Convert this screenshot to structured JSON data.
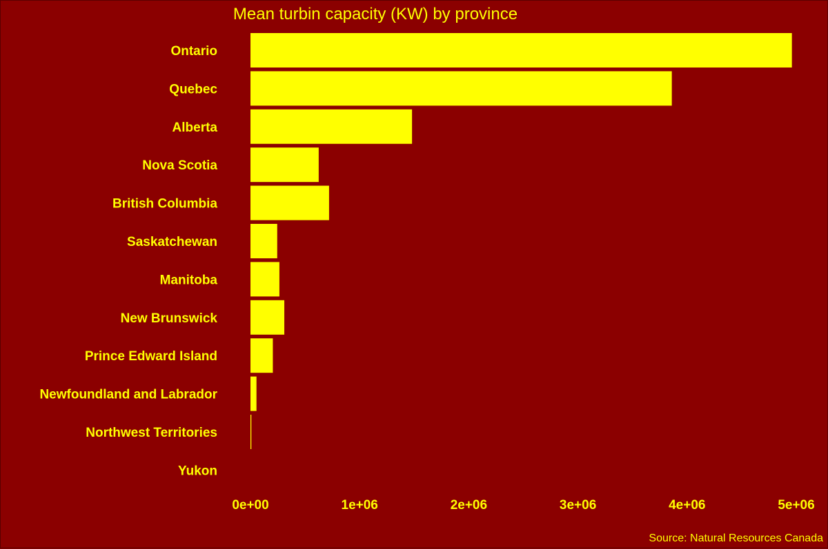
{
  "colors": {
    "background": "#8b0000",
    "bar": "#ffff00",
    "text": "#ffff00"
  },
  "chart_data": {
    "type": "bar",
    "orientation": "horizontal",
    "title": "Mean turbin capacity (KW) by province",
    "caption": "Source: Natural Resources Canada",
    "xlabel": "",
    "ylabel": "",
    "categories": [
      "Ontario",
      "Quebec",
      "Alberta",
      "Nova Scotia",
      "British Columbia",
      "Saskatchewan",
      "Manitoba",
      "New Brunswick",
      "Prince Edward Island",
      "Newfoundland and Labrador",
      "Northwest Territories",
      "Yukon"
    ],
    "values": [
      4960000,
      3860000,
      1480000,
      625000,
      720000,
      245000,
      265000,
      310000,
      205000,
      55000,
      8000,
      0
    ],
    "xlim": [
      0,
      5000000
    ],
    "xticks": [
      0,
      1000000,
      2000000,
      3000000,
      4000000,
      5000000
    ],
    "xtick_labels": [
      "0e+00",
      "1e+06",
      "2e+06",
      "3e+06",
      "4e+06",
      "5e+06"
    ],
    "grid": false,
    "legend": "none"
  }
}
